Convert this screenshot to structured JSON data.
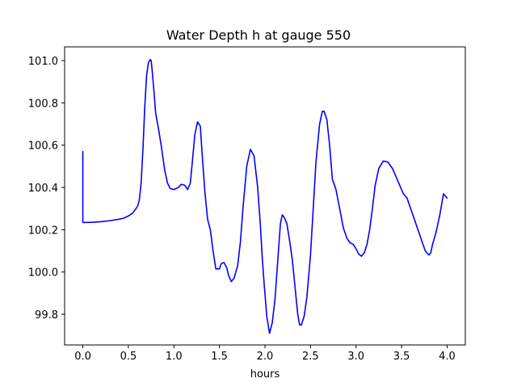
{
  "chart_data": {
    "type": "line",
    "title": "Water Depth h at gauge 550",
    "xlabel": "hours",
    "ylabel": "",
    "xlim": [
      -0.2,
      4.2
    ],
    "ylim": [
      99.655,
      101.065
    ],
    "xticks": [
      0.0,
      0.5,
      1.0,
      1.5,
      2.0,
      2.5,
      3.0,
      3.5,
      4.0
    ],
    "xtick_labels": [
      "0.0",
      "0.5",
      "1.0",
      "1.5",
      "2.0",
      "2.5",
      "3.0",
      "3.5",
      "4.0"
    ],
    "yticks": [
      99.8,
      100.0,
      100.2,
      100.4,
      100.6,
      100.8,
      101.0
    ],
    "ytick_labels": [
      "99.8",
      "100.0",
      "100.2",
      "100.4",
      "100.6",
      "100.8",
      "101.0"
    ],
    "grid": false,
    "series": [
      {
        "color": "#0000ff",
        "x": [
          0.0,
          0.0,
          0.02,
          0.1,
          0.2,
          0.3,
          0.4,
          0.45,
          0.5,
          0.55,
          0.6,
          0.62,
          0.64,
          0.66,
          0.68,
          0.7,
          0.72,
          0.74,
          0.75,
          0.76,
          0.78,
          0.8,
          0.83,
          0.86,
          0.9,
          0.93,
          0.96,
          1.0,
          1.05,
          1.08,
          1.12,
          1.15,
          1.18,
          1.2,
          1.23,
          1.26,
          1.29,
          1.31,
          1.34,
          1.37,
          1.4,
          1.43,
          1.46,
          1.5,
          1.52,
          1.55,
          1.58,
          1.6,
          1.63,
          1.66,
          1.7,
          1.73,
          1.76,
          1.8,
          1.84,
          1.88,
          1.92,
          1.95,
          1.97,
          1.99,
          2.02,
          2.05,
          2.08,
          2.11,
          2.14,
          2.17,
          2.19,
          2.21,
          2.24,
          2.27,
          2.3,
          2.33,
          2.36,
          2.38,
          2.4,
          2.43,
          2.46,
          2.5,
          2.53,
          2.56,
          2.6,
          2.63,
          2.65,
          2.68,
          2.71,
          2.74,
          2.78,
          2.82,
          2.86,
          2.9,
          2.93,
          2.95,
          2.97,
          3.0,
          3.03,
          3.06,
          3.09,
          3.12,
          3.15,
          3.18,
          3.21,
          3.25,
          3.3,
          3.35,
          3.4,
          3.44,
          3.48,
          3.52,
          3.56,
          3.6,
          3.64,
          3.68,
          3.72,
          3.76,
          3.8,
          3.82,
          3.84,
          3.88,
          3.92,
          3.96,
          4.0
        ],
        "y": [
          100.57,
          100.235,
          100.234,
          100.235,
          100.238,
          100.243,
          100.25,
          100.255,
          100.265,
          100.28,
          100.31,
          100.34,
          100.42,
          100.58,
          100.78,
          100.93,
          100.99,
          101.005,
          101.0,
          100.96,
          100.86,
          100.75,
          100.68,
          100.6,
          100.48,
          100.42,
          100.395,
          100.39,
          100.4,
          100.415,
          100.41,
          100.39,
          100.42,
          100.51,
          100.65,
          100.71,
          100.69,
          100.56,
          100.38,
          100.25,
          100.2,
          100.1,
          100.015,
          100.015,
          100.04,
          100.045,
          100.02,
          99.985,
          99.955,
          99.97,
          100.03,
          100.14,
          100.31,
          100.5,
          100.58,
          100.55,
          100.4,
          100.22,
          100.07,
          99.95,
          99.79,
          99.71,
          99.76,
          99.87,
          100.05,
          100.23,
          100.27,
          100.26,
          100.23,
          100.15,
          100.06,
          99.93,
          99.8,
          99.75,
          99.75,
          99.79,
          99.88,
          100.08,
          100.3,
          100.52,
          100.7,
          100.76,
          100.76,
          100.72,
          100.6,
          100.44,
          100.39,
          100.3,
          100.21,
          100.16,
          100.14,
          100.135,
          100.13,
          100.11,
          100.085,
          100.075,
          100.09,
          100.13,
          100.2,
          100.3,
          100.41,
          100.49,
          100.525,
          100.52,
          100.49,
          100.45,
          100.41,
          100.37,
          100.35,
          100.3,
          100.25,
          100.2,
          100.15,
          100.1,
          100.08,
          100.09,
          100.13,
          100.19,
          100.27,
          100.37,
          100.35
        ]
      }
    ]
  }
}
